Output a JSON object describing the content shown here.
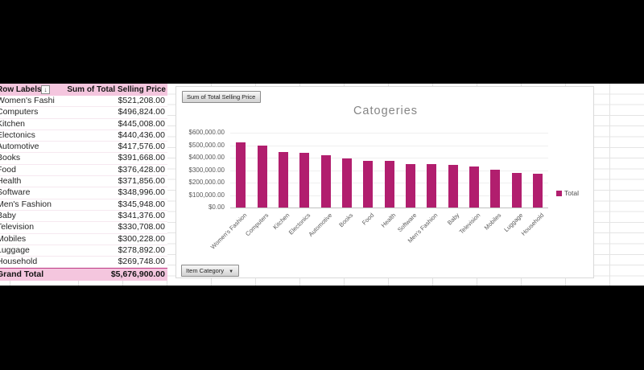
{
  "pivot_table": {
    "header": {
      "row_labels_label": "Row Labels",
      "values_label": "Sum of Total Selling Price",
      "sort_filter_icon": "sort-descending-filter-icon"
    },
    "rows": [
      {
        "label": "Women's Fashion",
        "value": "$521,208.00"
      },
      {
        "label": "Computers",
        "value": "$496,824.00"
      },
      {
        "label": "Kitchen",
        "value": "$445,008.00"
      },
      {
        "label": "Electonics",
        "value": "$440,436.00"
      },
      {
        "label": "Automotive",
        "value": "$417,576.00"
      },
      {
        "label": "Books",
        "value": "$391,668.00"
      },
      {
        "label": "Food",
        "value": "$376,428.00"
      },
      {
        "label": "Health",
        "value": "$371,856.00"
      },
      {
        "label": "Software",
        "value": "$348,996.00"
      },
      {
        "label": "Men's Fashion",
        "value": "$345,948.00"
      },
      {
        "label": "Baby",
        "value": "$341,376.00"
      },
      {
        "label": "Television",
        "value": "$330,708.00"
      },
      {
        "label": "Mobiles",
        "value": "$300,228.00"
      },
      {
        "label": "Luggage",
        "value": "$278,892.00"
      },
      {
        "label": "Household",
        "value": "$269,748.00"
      }
    ],
    "grand_total": {
      "label": "Grand Total",
      "value": "$5,676,900.00"
    }
  },
  "pivot_chart": {
    "title": "Catogeries",
    "value_field_button": "Sum of Total Selling Price",
    "axis_field_button": "Item Category",
    "legend_label": "Total"
  },
  "chart_data": {
    "type": "bar",
    "title": "Catogeries",
    "categories": [
      "Women's Fashion",
      "Computers",
      "Kitchen",
      "Electonics",
      "Automotive",
      "Books",
      "Food",
      "Health",
      "Software",
      "Men's Fashion",
      "Baby",
      "Television",
      "Mobiles",
      "Luggage",
      "Household"
    ],
    "series": [
      {
        "name": "Total",
        "values": [
          521208,
          496824,
          445008,
          440436,
          417576,
          391668,
          376428,
          371856,
          348996,
          345948,
          341376,
          330708,
          300228,
          278892,
          269748
        ]
      }
    ],
    "y_tick_labels": [
      "$0.00",
      "$100,000.00",
      "$200,000.00",
      "$300,000.00",
      "$400,000.00",
      "$500,000.00",
      "$600,000.00"
    ],
    "ylim": [
      0,
      600000
    ],
    "xlabel": "",
    "ylabel": "",
    "grid": true,
    "legend_position": "right"
  },
  "colors": {
    "bar": "#b11e6e",
    "header_pink": "#f4c6de",
    "grand_total_border": "#c2448c",
    "title_gray": "#858585",
    "axis_text": "#595959"
  }
}
